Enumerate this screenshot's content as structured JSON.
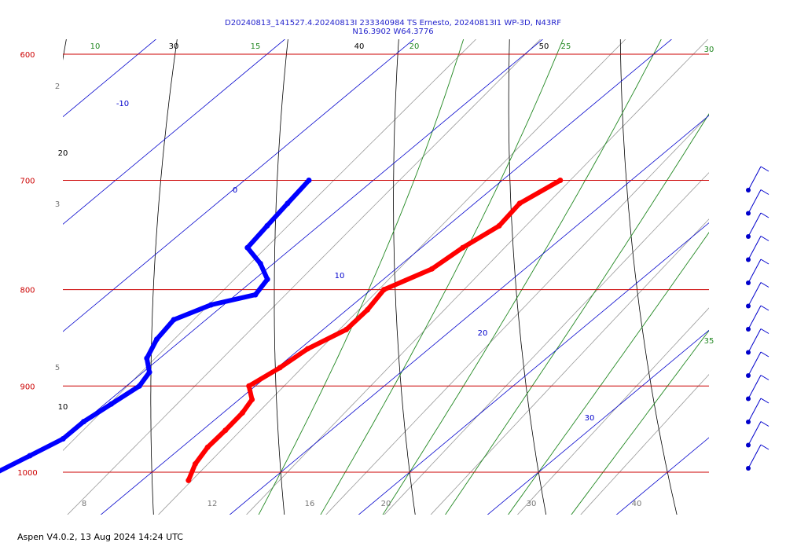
{
  "chart_data": {
    "type": "skew-t",
    "title": "D20240813_141527.4.20240813I 233340984 TS Ernesto, 20240813I1 WP-3D, N43RF",
    "subtitle": "N16.3902 W64.3776",
    "footer": "Aspen V4.0.2, 13 Aug 2024  14:24 UTC",
    "pressure_range_hpa": [
      600,
      1030
    ],
    "temperature_range_c": [
      -4,
      33
    ],
    "skew": 45,
    "isobars": [
      {
        "p": 600,
        "label": "600"
      },
      {
        "p": 700,
        "label": "700"
      },
      {
        "p": 800,
        "label": "800"
      },
      {
        "p": 900,
        "label": "900"
      },
      {
        "p": 1000,
        "label": "1000"
      }
    ],
    "isotherm_labels": [
      {
        "t": -10,
        "label": "-10"
      },
      {
        "t": 0,
        "label": "0"
      },
      {
        "t": 10,
        "label": "10"
      },
      {
        "t": 20,
        "label": "20"
      },
      {
        "t": 30,
        "label": "30"
      }
    ],
    "dry_adiabat_labels": [
      {
        "label": "30"
      },
      {
        "label": "40"
      },
      {
        "label": "50"
      },
      {
        "label": "20"
      },
      {
        "label": "10"
      }
    ],
    "moist_adiabat_labels": [
      {
        "label": "10"
      },
      {
        "label": "15"
      },
      {
        "label": "20"
      },
      {
        "label": "25"
      },
      {
        "label": "30"
      },
      {
        "label": "35"
      }
    ],
    "mixing_ratio_labels": [
      "2",
      "3",
      "5",
      "8",
      "12",
      "16",
      "20",
      "30",
      "40"
    ],
    "series": [
      {
        "name": "Temperature",
        "color": "#ff0000",
        "points": [
          [
            700,
            4.5
          ],
          [
            720,
            3.5
          ],
          [
            740,
            4.0
          ],
          [
            760,
            3.2
          ],
          [
            780,
            2.8
          ],
          [
            800,
            1.0
          ],
          [
            820,
            1.6
          ],
          [
            840,
            1.8
          ],
          [
            860,
            0.6
          ],
          [
            880,
            0.2
          ],
          [
            900,
            -0.5
          ],
          [
            915,
            1.0
          ],
          [
            930,
            1.5
          ],
          [
            950,
            1.8
          ],
          [
            970,
            2.0
          ],
          [
            990,
            2.6
          ],
          [
            1010,
            3.6
          ]
        ]
      },
      {
        "name": "Dewpoint",
        "color": "#0000ff",
        "points": [
          [
            700,
            -15.0
          ],
          [
            720,
            -14.5
          ],
          [
            740,
            -14.0
          ],
          [
            760,
            -13.5
          ],
          [
            775,
            -11.0
          ],
          [
            790,
            -9.0
          ],
          [
            805,
            -8.5
          ],
          [
            815,
            -11.0
          ],
          [
            830,
            -12.5
          ],
          [
            850,
            -12.0
          ],
          [
            870,
            -11.0
          ],
          [
            885,
            -9.5
          ],
          [
            900,
            -9.0
          ],
          [
            920,
            -9.5
          ],
          [
            940,
            -10.0
          ],
          [
            960,
            -10.0
          ],
          [
            980,
            -11.0
          ],
          [
            1010,
            -12.5
          ]
        ]
      }
    ],
    "wind_barbs": 13
  }
}
